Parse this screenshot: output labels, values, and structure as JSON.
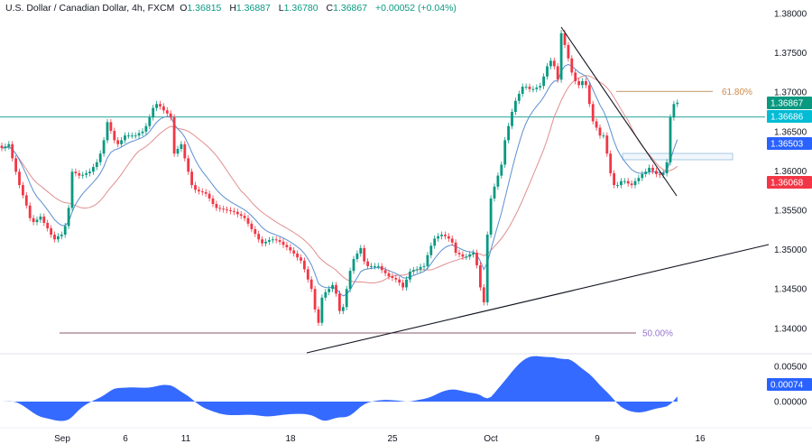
{
  "header": {
    "title": "U.S. Dollar / Canadian Dollar, 4h, FXCM",
    "o_label": "O",
    "open": "1.36815",
    "h_label": "H",
    "high": "1.36887",
    "l_label": "L",
    "low": "1.36780",
    "c_label": "C",
    "close": "1.36867",
    "change": "+0.00052 (+0.04%)"
  },
  "colors": {
    "up": "#089981",
    "down": "#f23645",
    "fast_ma": "#5b8fd0",
    "slow_ma": "#e08f8f",
    "level_line": "#26a69a",
    "fib_618": "#c8a27a",
    "fib_50": "#8d5a6e",
    "oscillator": "#2962ff"
  },
  "chart_data": {
    "type": "candlestick",
    "timeframe": "4h",
    "symbol": "USDCAD",
    "x_tick_labels": [
      "Sep",
      "6",
      "11",
      "18",
      "25",
      "Oct",
      "9",
      "16"
    ],
    "y_tick_labels": [
      "1.38000",
      "1.37500",
      "1.37000",
      "1.36500",
      "1.36000",
      "1.35500",
      "1.35000",
      "1.34500",
      "1.34000"
    ],
    "ylim": [
      1.3375,
      1.3817
    ],
    "closes": [
      1.3629,
      1.3631,
      1.3634,
      1.3616,
      1.3599,
      1.3582,
      1.3569,
      1.3556,
      1.354,
      1.3535,
      1.3538,
      1.3542,
      1.3534,
      1.3527,
      1.3519,
      1.3513,
      1.3517,
      1.3519,
      1.353,
      1.3553,
      1.3599,
      1.3597,
      1.3594,
      1.3595,
      1.3597,
      1.3599,
      1.3605,
      1.3611,
      1.3622,
      1.3639,
      1.3662,
      1.3651,
      1.3639,
      1.3634,
      1.3639,
      1.3645,
      1.3645,
      1.3645,
      1.3645,
      1.3648,
      1.365,
      1.3657,
      1.3668,
      1.368,
      1.3685,
      1.3682,
      1.3677,
      1.3673,
      1.3668,
      1.3622,
      1.3628,
      1.3634,
      1.3616,
      1.3599,
      1.3582,
      1.3576,
      1.3574,
      1.3573,
      1.3571,
      1.3565,
      1.3558,
      1.3553,
      1.3552,
      1.3551,
      1.355,
      1.3549,
      1.3548,
      1.3545,
      1.3543,
      1.354,
      1.3533,
      1.3526,
      1.352,
      1.3513,
      1.3508,
      1.351,
      1.3512,
      1.3513,
      1.3512,
      1.351,
      1.3506,
      1.3503,
      1.3499,
      1.3495,
      1.349,
      1.3486,
      1.3475,
      1.3462,
      1.345,
      1.3424,
      1.3407,
      1.3439,
      1.3446,
      1.345,
      1.3455,
      1.3444,
      1.3422,
      1.3427,
      1.345,
      1.3473,
      1.3488,
      1.3495,
      1.3502,
      1.3485,
      1.3479,
      1.3479,
      1.3479,
      1.3479,
      1.3474,
      1.347,
      1.3466,
      1.3464,
      1.3462,
      1.3458,
      1.3452,
      1.3462,
      1.3472,
      1.3474,
      1.3475,
      1.3478,
      1.3479,
      1.3493,
      1.3505,
      1.3514,
      1.3517,
      1.3519,
      1.3517,
      1.3514,
      1.3509,
      1.3496,
      1.3494,
      1.3491,
      1.3491,
      1.3494,
      1.3496,
      1.348,
      1.3452,
      1.3433,
      1.3519,
      1.3565,
      1.358,
      1.3594,
      1.3608,
      1.3639,
      1.3657,
      1.3675,
      1.3689,
      1.3698,
      1.3707,
      1.3707,
      1.3704,
      1.3704,
      1.3706,
      1.3708,
      1.372,
      1.3733,
      1.374,
      1.3733,
      1.3716,
      1.3775,
      1.376,
      1.3743,
      1.3725,
      1.3714,
      1.3709,
      1.3714,
      1.3709,
      1.3685,
      1.3663,
      1.3655,
      1.3645,
      1.3645,
      1.3622,
      1.3597,
      1.3582,
      1.3582,
      1.3587,
      1.3587,
      1.3584,
      1.3582,
      1.3587,
      1.3591,
      1.3596,
      1.3599,
      1.3604,
      1.36,
      1.3596,
      1.3595,
      1.3597,
      1.3611,
      1.3668,
      1.3685,
      1.36867
    ],
    "horizontal_level": 1.36686,
    "fib_levels": [
      {
        "label": "61.80%",
        "price": 1.3701
      },
      {
        "label": "50.00%",
        "price": 1.3394
      }
    ],
    "price_labels": [
      {
        "value": "1.36867",
        "kind": "last",
        "color": "#089981"
      },
      {
        "value": "1.36686",
        "kind": "level",
        "color": "#00bcd4"
      },
      {
        "value": "1.36503",
        "kind": "fast_ma",
        "color": "#2962ff"
      },
      {
        "value": "1.36068",
        "kind": "slow_ma",
        "color": "#f23645"
      }
    ],
    "oscillator": {
      "y_tick_labels": [
        "0.00500",
        "0.00000"
      ],
      "last_value": "0.00074",
      "ylim": [
        -0.003,
        0.0065
      ]
    }
  }
}
